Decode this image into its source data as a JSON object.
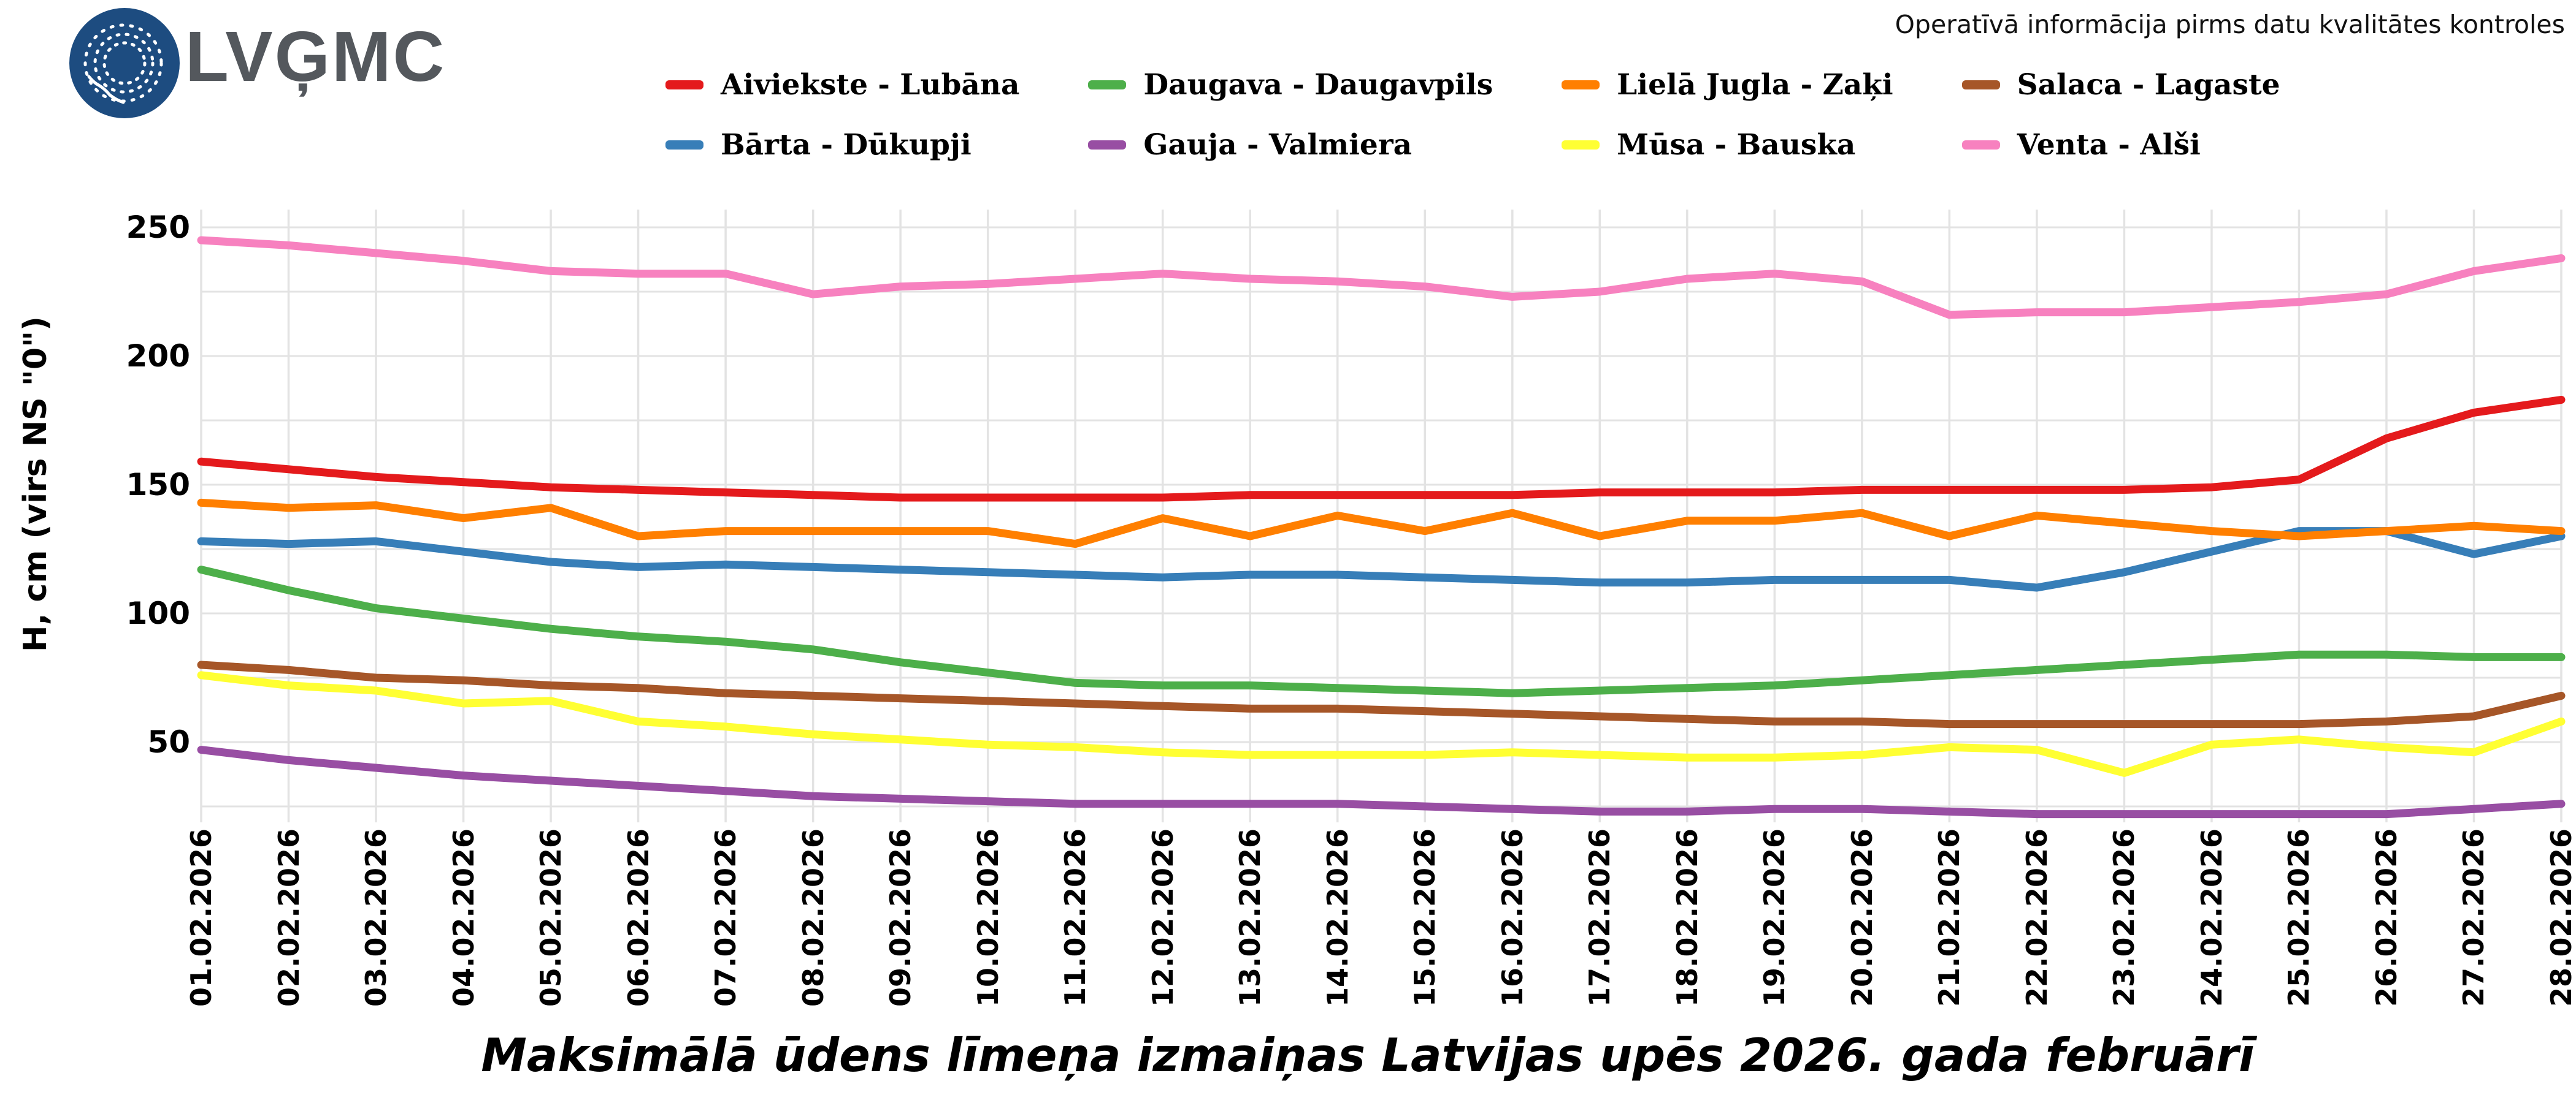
{
  "header": {
    "logo_text": "LVĢMC",
    "logo_circle_color": "#1d4c80",
    "logo_text_color": "#54585d",
    "notice": "Operatīvā informācija pirms datu kvalitātes kontroles"
  },
  "chart_data": {
    "type": "line",
    "title": "Maksimālā ūdens līmeņa izmaiņas Latvijas upēs 2026. gada februārī",
    "xlabel": "",
    "ylabel": "H, cm (virs NS \"0\")",
    "ylim": [
      15,
      262
    ],
    "yticks": [
      250,
      200,
      150,
      100,
      50
    ],
    "grid": true,
    "grid_step": 25,
    "grid_color": "#e3e3e3",
    "legend_position": "top",
    "legend_ncol": 4,
    "categories": [
      "01.02.2026",
      "02.02.2026",
      "03.02.2026",
      "04.02.2026",
      "05.02.2026",
      "06.02.2026",
      "07.02.2026",
      "08.02.2026",
      "09.02.2026",
      "10.02.2026",
      "11.02.2026",
      "12.02.2026",
      "13.02.2026",
      "14.02.2026",
      "15.02.2026",
      "16.02.2026",
      "17.02.2026",
      "18.02.2026",
      "19.02.2026",
      "20.02.2026",
      "21.02.2026",
      "22.02.2026",
      "23.02.2026",
      "24.02.2026",
      "25.02.2026",
      "26.02.2026",
      "27.02.2026",
      "28.02.2026"
    ],
    "series": [
      {
        "name": "Aiviekste - Lubāna",
        "color": "#e41a1c",
        "values": [
          159,
          156,
          153,
          151,
          149,
          148,
          147,
          146,
          145,
          145,
          145,
          145,
          146,
          146,
          146,
          146,
          147,
          147,
          147,
          148,
          148,
          148,
          148,
          149,
          152,
          168,
          178,
          183
        ]
      },
      {
        "name": "Bārta - Dūkupji",
        "color": "#377eb8",
        "values": [
          128,
          127,
          128,
          124,
          120,
          118,
          119,
          118,
          117,
          116,
          115,
          114,
          115,
          115,
          114,
          113,
          112,
          112,
          113,
          113,
          113,
          110,
          116,
          124,
          132,
          132,
          123,
          130
        ]
      },
      {
        "name": "Daugava - Daugavpils",
        "color": "#4daf4a",
        "values": [
          117,
          109,
          102,
          98,
          94,
          91,
          89,
          86,
          81,
          77,
          73,
          72,
          72,
          71,
          70,
          69,
          70,
          71,
          72,
          74,
          76,
          78,
          80,
          82,
          84,
          84,
          83,
          83
        ]
      },
      {
        "name": "Gauja - Valmiera",
        "color": "#984ea3",
        "values": [
          47,
          43,
          40,
          37,
          35,
          33,
          31,
          29,
          28,
          27,
          26,
          26,
          26,
          26,
          25,
          24,
          23,
          23,
          24,
          24,
          23,
          22,
          22,
          22,
          22,
          22,
          24,
          26
        ]
      },
      {
        "name": "Lielā Jugla - Zaķi",
        "color": "#ff7f00",
        "values": [
          143,
          141,
          142,
          137,
          141,
          130,
          132,
          132,
          132,
          132,
          127,
          137,
          130,
          138,
          132,
          139,
          130,
          136,
          136,
          139,
          130,
          138,
          135,
          132,
          130,
          132,
          134,
          132
        ]
      },
      {
        "name": "Mūsa - Bauska",
        "color": "#ffff33",
        "values": [
          76,
          72,
          70,
          65,
          66,
          58,
          56,
          53,
          51,
          49,
          48,
          46,
          45,
          45,
          45,
          46,
          45,
          44,
          44,
          45,
          48,
          47,
          38,
          49,
          51,
          48,
          46,
          58
        ]
      },
      {
        "name": "Salaca - Lagaste",
        "color": "#a65628",
        "values": [
          80,
          78,
          75,
          74,
          72,
          71,
          69,
          68,
          67,
          66,
          65,
          64,
          63,
          63,
          62,
          61,
          60,
          59,
          58,
          58,
          57,
          57,
          57,
          57,
          57,
          58,
          60,
          68
        ]
      },
      {
        "name": "Venta - Alši",
        "color": "#f781bf",
        "values": [
          245,
          243,
          240,
          237,
          233,
          232,
          232,
          224,
          227,
          228,
          230,
          232,
          230,
          229,
          227,
          223,
          225,
          230,
          232,
          229,
          216,
          217,
          217,
          219,
          221,
          224,
          233,
          238
        ]
      }
    ]
  }
}
